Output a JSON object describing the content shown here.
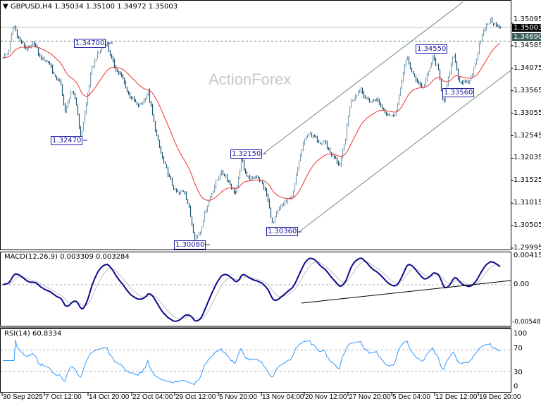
{
  "header": {
    "symbol": "GBPUSD,H4",
    "ohlc": "1.35034 1.35100 1.34972 1.35003"
  },
  "watermark": "ActionForex",
  "price_axis": [
    "1.35095",
    "1.34585",
    "1.34075",
    "1.33565",
    "1.33055",
    "1.32545",
    "1.32035",
    "1.31525",
    "1.31015",
    "1.30505",
    "1.29995"
  ],
  "current_price": "1.35003",
  "level_price": "1.34690",
  "level_labels": [
    "1.34700",
    "1.32470",
    "1.30080",
    "1.32150",
    "1.30360",
    "1.34550",
    "1.33560"
  ],
  "macd": {
    "title": "MACD(12,26,9) 0.003309 0.003284",
    "axis": [
      "0.004159",
      "0.00",
      "-0.005485"
    ]
  },
  "rsi": {
    "title": "RSI(14) 60.8334",
    "axis": [
      "100",
      "70",
      "30",
      "0"
    ]
  },
  "time_axis": [
    "30 Sep 2025",
    "7 Oct 12:00",
    "14 Oct 20:00",
    "22 Oct 04:00",
    "29 Oct 12:00",
    "5 Nov 20:00",
    "13 Nov 04:00",
    "20 Nov 12:00",
    "27 Nov 20:00",
    "5 Dec 04:00",
    "12 Dec 12:00",
    "19 Dec 20:00"
  ],
  "colors": {
    "bar_up": "#7f9fb4",
    "bar_down": "#1d5675",
    "moving_average": "#f03030",
    "macd_line": "#0a0a8a",
    "signal_line": "#c0c0c0",
    "rsi_line": "#3399ff",
    "channel": "#6e8a86",
    "label_border": "#1a1aa0"
  },
  "chart_data": {
    "type": "ohlc",
    "symbol": "GBPUSD",
    "timeframe": "H4",
    "ylim": [
      1.29995,
      1.35095
    ],
    "close_path": [
      1.3434,
      1.3442,
      1.3506,
      1.3474,
      1.3458,
      1.345,
      1.3466,
      1.3434,
      1.3426,
      1.3418,
      1.3386,
      1.3378,
      1.3306,
      1.3354,
      1.3338,
      1.325,
      1.3322,
      1.3402,
      1.3434,
      1.3454,
      1.3465,
      1.3426,
      1.3402,
      1.3386,
      1.3354,
      1.3338,
      1.3322,
      1.333,
      1.3354,
      1.329,
      1.3234,
      1.3194,
      1.3163,
      1.3131,
      1.3123,
      1.3131,
      1.3083,
      1.3022,
      1.3035,
      1.3083,
      1.3115,
      1.3147,
      1.3171,
      1.3163,
      1.3139,
      1.3123,
      1.3203,
      1.3163,
      1.3155,
      1.3163,
      1.3147,
      1.3115,
      1.3051,
      1.3083,
      1.3099,
      1.3107,
      1.3123,
      1.3194,
      1.3243,
      1.3259,
      1.3251,
      1.3234,
      1.3243,
      1.3219,
      1.3203,
      1.3187,
      1.3243,
      1.333,
      1.3346,
      1.3362,
      1.3338,
      1.333,
      1.3338,
      1.3322,
      1.3306,
      1.3298,
      1.3314,
      1.3386,
      1.3434,
      1.3394,
      1.3378,
      1.3362,
      1.3394,
      1.3434,
      1.3402,
      1.333,
      1.3386,
      1.3442,
      1.3378,
      1.3373,
      1.3378,
      1.341,
      1.3466,
      1.3498,
      1.3517,
      1.3506,
      1.35
    ],
    "marked_levels": [
      1.347,
      1.3247,
      1.3008,
      1.3215,
      1.3036,
      1.3455,
      1.3356
    ],
    "current": 1.35003,
    "support_resistance": 1.3469,
    "rsi_levels": [
      30,
      70
    ],
    "macd_range": [
      -0.005485,
      0.004159
    ]
  }
}
